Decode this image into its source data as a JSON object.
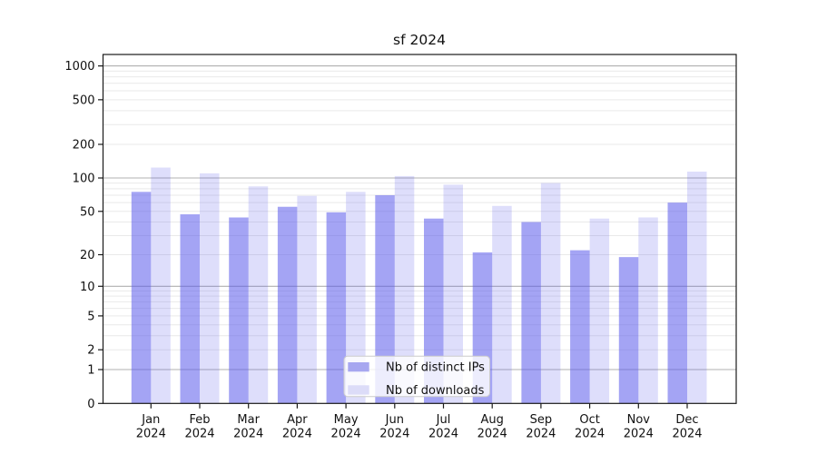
{
  "title": "sf 2024",
  "colors": {
    "ips_bar_fill": "rgba(90,90,235,0.55)",
    "downloads_bar_fill": "rgba(90,90,235,0.20)",
    "ips_swatch": "#a7a7f0",
    "downloads_swatch": "#dcdcf8",
    "major_grid": "#b0b0b0",
    "minor_grid": "#e9e9e9",
    "frame": "#1a1a1a",
    "tick": "#1a1a1a",
    "legend_bg": "rgba(255,255,255,0.8)",
    "legend_border": "#cccccc"
  },
  "chart_data": {
    "type": "bar",
    "title": "sf 2024",
    "xlabel": "",
    "ylabel": "",
    "x_months": [
      "Jan",
      "Feb",
      "Mar",
      "Apr",
      "May",
      "Jun",
      "Jul",
      "Aug",
      "Sep",
      "Oct",
      "Nov",
      "Dec"
    ],
    "x_year": "2024",
    "series": [
      {
        "name": "Nb of distinct IPs",
        "values": [
          75,
          47,
          44,
          55,
          49,
          70,
          43,
          21,
          40,
          22,
          19,
          60
        ]
      },
      {
        "name": "Nb of downloads",
        "values": [
          124,
          110,
          84,
          69,
          75,
          104,
          87,
          56,
          90,
          43,
          44,
          114
        ]
      }
    ],
    "yscale": "symlog ln(1+v)",
    "yticks": [
      0,
      1,
      2,
      5,
      10,
      20,
      50,
      100,
      200,
      500,
      1000
    ],
    "major_gridlines": [
      1,
      10,
      100,
      1000
    ],
    "minor_gridline_decades": [
      1,
      10,
      100
    ],
    "ylim_top_value": 1259,
    "grid": "on",
    "legend_position": "lower-center-inside"
  }
}
